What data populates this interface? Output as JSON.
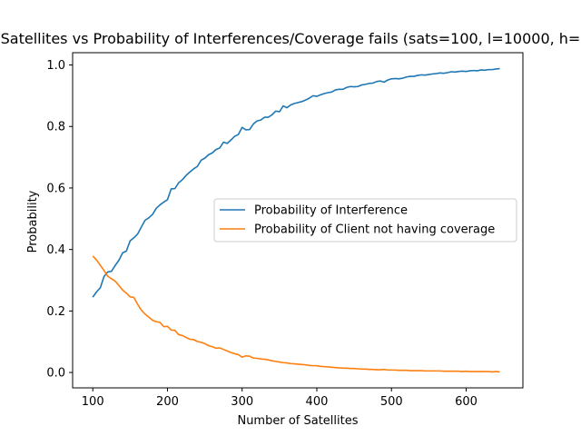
{
  "chart_data": {
    "type": "line",
    "title": "Satellites vs Probability of Interferences/Coverage fails (sats=100, l=10000, h=",
    "xlabel": "Number of Satellites",
    "ylabel": "Probability",
    "xlim": [
      73,
      676
    ],
    "ylim": [
      -0.05,
      1.04
    ],
    "xticks": [
      100,
      200,
      300,
      400,
      500,
      600
    ],
    "yticks": [
      0.0,
      0.2,
      0.4,
      0.6,
      0.8,
      1.0
    ],
    "ytick_labels": [
      "0.0",
      "0.2",
      "0.4",
      "0.6",
      "0.8",
      "1.0"
    ],
    "legend_position": "center-right",
    "grid": false,
    "series": [
      {
        "name": "Probability of Interference",
        "color": "#1f77b4",
        "x": [
          100,
          105,
          110,
          115,
          120,
          125,
          130,
          135,
          140,
          145,
          150,
          155,
          160,
          165,
          170,
          175,
          180,
          185,
          190,
          195,
          200,
          205,
          210,
          215,
          220,
          225,
          230,
          235,
          240,
          245,
          250,
          255,
          260,
          265,
          270,
          275,
          280,
          285,
          290,
          295,
          300,
          305,
          310,
          315,
          320,
          325,
          330,
          335,
          340,
          345,
          350,
          355,
          360,
          365,
          370,
          375,
          380,
          385,
          390,
          395,
          400,
          405,
          410,
          415,
          420,
          425,
          430,
          435,
          440,
          445,
          450,
          455,
          460,
          465,
          470,
          475,
          480,
          485,
          490,
          495,
          500,
          505,
          510,
          515,
          520,
          525,
          530,
          535,
          540,
          545,
          550,
          555,
          560,
          565,
          570,
          575,
          580,
          585,
          590,
          595,
          600,
          605,
          610,
          615,
          620,
          625,
          630,
          635,
          640,
          645
        ],
        "y": [
          0.245,
          0.262,
          0.275,
          0.312,
          0.327,
          0.329,
          0.348,
          0.365,
          0.389,
          0.395,
          0.428,
          0.438,
          0.45,
          0.473,
          0.495,
          0.503,
          0.514,
          0.534,
          0.545,
          0.554,
          0.562,
          0.597,
          0.598,
          0.617,
          0.627,
          0.641,
          0.652,
          0.662,
          0.67,
          0.69,
          0.697,
          0.708,
          0.714,
          0.725,
          0.73,
          0.749,
          0.745,
          0.756,
          0.768,
          0.774,
          0.797,
          0.789,
          0.79,
          0.808,
          0.818,
          0.821,
          0.83,
          0.83,
          0.838,
          0.85,
          0.848,
          0.867,
          0.861,
          0.87,
          0.875,
          0.878,
          0.881,
          0.886,
          0.892,
          0.9,
          0.898,
          0.903,
          0.907,
          0.91,
          0.912,
          0.919,
          0.921,
          0.921,
          0.927,
          0.93,
          0.929,
          0.93,
          0.935,
          0.937,
          0.94,
          0.941,
          0.946,
          0.948,
          0.944,
          0.951,
          0.955,
          0.956,
          0.955,
          0.957,
          0.961,
          0.963,
          0.963,
          0.966,
          0.968,
          0.967,
          0.969,
          0.971,
          0.972,
          0.974,
          0.973,
          0.975,
          0.978,
          0.977,
          0.979,
          0.98,
          0.979,
          0.981,
          0.982,
          0.981,
          0.984,
          0.983,
          0.985,
          0.985,
          0.987,
          0.988
        ]
      },
      {
        "name": "Probability of Client not having coverage",
        "color": "#ff7f0e",
        "x": [
          100,
          105,
          110,
          115,
          120,
          125,
          130,
          135,
          140,
          145,
          150,
          155,
          160,
          165,
          170,
          175,
          180,
          185,
          190,
          195,
          200,
          205,
          210,
          215,
          220,
          225,
          230,
          235,
          240,
          245,
          250,
          255,
          260,
          265,
          270,
          275,
          280,
          285,
          290,
          295,
          300,
          305,
          310,
          315,
          320,
          325,
          330,
          335,
          340,
          345,
          350,
          355,
          360,
          365,
          370,
          375,
          380,
          385,
          390,
          395,
          400,
          405,
          410,
          415,
          420,
          425,
          430,
          435,
          440,
          445,
          450,
          455,
          460,
          465,
          470,
          475,
          480,
          485,
          490,
          495,
          500,
          505,
          510,
          515,
          520,
          525,
          530,
          535,
          540,
          545,
          550,
          555,
          560,
          565,
          570,
          575,
          580,
          585,
          590,
          595,
          600,
          605,
          610,
          615,
          620,
          625,
          630,
          635,
          640,
          645
        ],
        "y": [
          0.379,
          0.366,
          0.349,
          0.332,
          0.313,
          0.305,
          0.297,
          0.283,
          0.268,
          0.258,
          0.246,
          0.244,
          0.222,
          0.203,
          0.19,
          0.18,
          0.17,
          0.165,
          0.163,
          0.149,
          0.15,
          0.138,
          0.137,
          0.123,
          0.12,
          0.114,
          0.108,
          0.107,
          0.101,
          0.098,
          0.094,
          0.087,
          0.084,
          0.079,
          0.08,
          0.075,
          0.07,
          0.065,
          0.061,
          0.058,
          0.05,
          0.054,
          0.053,
          0.047,
          0.046,
          0.044,
          0.043,
          0.041,
          0.038,
          0.036,
          0.034,
          0.032,
          0.031,
          0.029,
          0.028,
          0.027,
          0.026,
          0.025,
          0.023,
          0.022,
          0.022,
          0.02,
          0.019,
          0.018,
          0.017,
          0.016,
          0.015,
          0.014,
          0.014,
          0.013,
          0.013,
          0.012,
          0.011,
          0.011,
          0.01,
          0.01,
          0.009,
          0.009,
          0.01,
          0.008,
          0.008,
          0.008,
          0.007,
          0.007,
          0.007,
          0.006,
          0.006,
          0.006,
          0.006,
          0.005,
          0.005,
          0.005,
          0.005,
          0.005,
          0.004,
          0.004,
          0.004,
          0.004,
          0.004,
          0.003,
          0.004,
          0.003,
          0.003,
          0.003,
          0.003,
          0.003,
          0.003,
          0.002,
          0.003,
          0.002
        ]
      }
    ]
  }
}
